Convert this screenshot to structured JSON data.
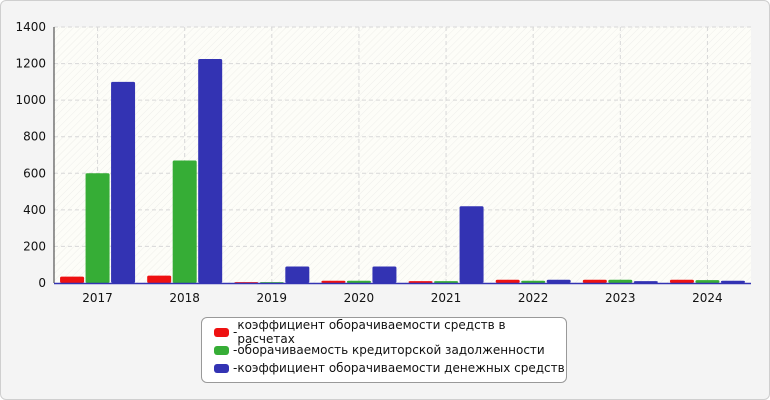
{
  "chart_data": {
    "type": "bar",
    "categories": [
      "2017",
      "2018",
      "2019",
      "2020",
      "2021",
      "2022",
      "2023",
      "2024"
    ],
    "series": [
      {
        "name": "коэффициент оборачиваемости средств в расчетах",
        "color": "#ee1111",
        "values": [
          35,
          40,
          5,
          12,
          10,
          18,
          18,
          18
        ]
      },
      {
        "name": "оборачиваемость кредиторской задолженности",
        "color": "#36ad36",
        "values": [
          600,
          670,
          5,
          12,
          10,
          12,
          18,
          16
        ]
      },
      {
        "name": "коэффициент оборачиваемости денежных средств",
        "color": "#3333b3",
        "values": [
          1100,
          1225,
          90,
          90,
          420,
          18,
          10,
          12
        ]
      }
    ],
    "ylim": [
      0,
      1400
    ],
    "yticks": [
      0,
      200,
      400,
      600,
      800,
      1000,
      1200,
      1400
    ],
    "grid": true,
    "legend_position": "bottom",
    "legend_prefix": "- "
  }
}
